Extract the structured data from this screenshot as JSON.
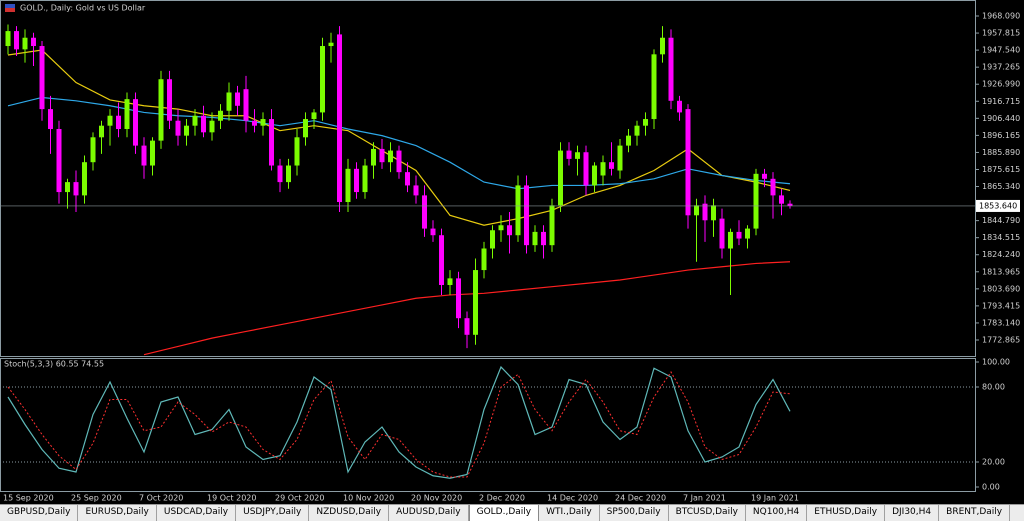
{
  "chart_data": [
    {
      "type": "candlestick",
      "title": "GOLD., Daily:  Gold vs US Dollar",
      "categories": [
        "15 Sep 2020",
        null,
        null,
        null,
        null,
        null,
        null,
        null,
        "25 Sep 2020",
        null,
        null,
        null,
        null,
        null,
        null,
        null,
        "7 Oct 2020",
        null,
        null,
        null,
        null,
        null,
        null,
        null,
        "19 Oct 2020",
        null,
        null,
        null,
        null,
        null,
        null,
        null,
        "29 Oct 2020",
        null,
        null,
        null,
        null,
        null,
        null,
        null,
        "10 Nov 2020",
        null,
        null,
        null,
        null,
        null,
        null,
        null,
        "20 Nov 2020",
        null,
        null,
        null,
        null,
        null,
        null,
        null,
        "2 Dec 2020",
        null,
        null,
        null,
        null,
        null,
        null,
        null,
        "14 Dec 2020",
        null,
        null,
        null,
        null,
        null,
        null,
        null,
        "24 Dec 2020",
        null,
        null,
        null,
        null,
        null,
        null,
        null,
        "7 Jan 2021",
        null,
        null,
        null,
        null,
        null,
        null,
        null,
        "19 Jan 2021",
        null,
        null,
        null,
        null
      ],
      "open": [
        1950,
        1959,
        1948,
        1955,
        1950,
        1912,
        1900,
        1862,
        1868,
        1860,
        1880,
        1895,
        1902,
        1908,
        1900,
        1918,
        1890,
        1878,
        1893,
        1930,
        1905,
        1896,
        1902,
        1908,
        1898,
        1905,
        1911,
        1922,
        1924,
        1905,
        1902,
        1906,
        1878,
        1868,
        1878,
        1895,
        1906,
        1910,
        1950,
        1957,
        1856,
        1876,
        1862,
        1878,
        1888,
        1880,
        1887,
        1874,
        1866,
        1860,
        1840,
        1836,
        1806,
        1810,
        1786,
        1776,
        1815,
        1828,
        1839,
        1842,
        1836,
        1866,
        1830,
        1838,
        1830,
        1854,
        1887,
        1882,
        1886,
        1866,
        1872,
        1880,
        1875,
        1890,
        1896,
        1902,
        1906,
        1945,
        1955,
        1917,
        1912,
        1848,
        1855,
        1845,
        1846,
        1828,
        1838,
        1834,
        1840,
        1873,
        1870,
        1860,
        1855
      ],
      "high": [
        1963,
        1962,
        1960,
        1958,
        1953,
        1920,
        1905,
        1870,
        1875,
        1884,
        1898,
        1905,
        1912,
        1916,
        1922,
        1922,
        1895,
        1895,
        1935,
        1935,
        1912,
        1906,
        1912,
        1914,
        1910,
        1915,
        1928,
        1926,
        1932,
        1912,
        1910,
        1912,
        1882,
        1882,
        1900,
        1910,
        1912,
        1955,
        1958,
        1962,
        1882,
        1880,
        1882,
        1892,
        1894,
        1892,
        1890,
        1880,
        1872,
        1866,
        1845,
        1840,
        1815,
        1814,
        1790,
        1822,
        1832,
        1842,
        1848,
        1850,
        1872,
        1872,
        1842,
        1842,
        1858,
        1892,
        1892,
        1890,
        1890,
        1880,
        1884,
        1892,
        1894,
        1900,
        1905,
        1910,
        1948,
        1962,
        1960,
        1920,
        1915,
        1858,
        1860,
        1858,
        1852,
        1840,
        1845,
        1842,
        1876,
        1876,
        1874,
        1864,
        1857
      ],
      "low": [
        1945,
        1944,
        1940,
        1938,
        1905,
        1885,
        1855,
        1852,
        1850,
        1855,
        1875,
        1885,
        1890,
        1895,
        1895,
        1885,
        1870,
        1872,
        1888,
        1900,
        1890,
        1890,
        1896,
        1895,
        1893,
        1900,
        1905,
        1908,
        1898,
        1898,
        1896,
        1875,
        1862,
        1864,
        1872,
        1890,
        1900,
        1905,
        1940,
        1850,
        1850,
        1858,
        1858,
        1870,
        1876,
        1874,
        1870,
        1862,
        1855,
        1835,
        1832,
        1800,
        1800,
        1780,
        1768,
        1770,
        1810,
        1822,
        1832,
        1825,
        1832,
        1825,
        1826,
        1822,
        1826,
        1850,
        1878,
        1872,
        1860,
        1862,
        1866,
        1872,
        1870,
        1886,
        1890,
        1896,
        1900,
        1940,
        1912,
        1905,
        1840,
        1820,
        1832,
        1835,
        1822,
        1800,
        1830,
        1828,
        1836,
        1865,
        1846,
        1848,
        1852
      ],
      "close": [
        1959,
        1948,
        1955,
        1950,
        1912,
        1900,
        1862,
        1868,
        1860,
        1880,
        1895,
        1902,
        1908,
        1900,
        1918,
        1890,
        1878,
        1893,
        1930,
        1905,
        1896,
        1902,
        1908,
        1898,
        1905,
        1911,
        1922,
        1914,
        1905,
        1902,
        1906,
        1878,
        1868,
        1878,
        1895,
        1906,
        1910,
        1950,
        1952,
        1856,
        1876,
        1862,
        1878,
        1888,
        1880,
        1887,
        1874,
        1866,
        1860,
        1840,
        1836,
        1806,
        1810,
        1786,
        1776,
        1815,
        1828,
        1839,
        1842,
        1836,
        1866,
        1830,
        1838,
        1830,
        1854,
        1887,
        1882,
        1886,
        1866,
        1878,
        1880,
        1876,
        1890,
        1896,
        1902,
        1906,
        1945,
        1955,
        1917,
        1910,
        1848,
        1854,
        1845,
        1854,
        1828,
        1838,
        1834,
        1840,
        1873,
        1870,
        1860,
        1855,
        1853.64
      ],
      "up_color": "#7cfc00",
      "down_color": "#ff00ff",
      "lines": [
        {
          "color": "#e8cc10",
          "x": [
            0,
            4,
            8,
            12,
            16,
            20,
            24,
            28,
            32,
            36,
            40,
            44,
            48,
            52,
            56,
            60,
            64,
            68,
            72,
            76,
            80,
            84,
            88,
            92
          ],
          "values": [
            1944.6,
            1947.6,
            1928,
            1917.5,
            1914,
            1912,
            1908,
            1908,
            1899,
            1902,
            1899,
            1887,
            1875,
            1848,
            1842,
            1846,
            1851,
            1860,
            1866,
            1875,
            1888,
            1872,
            1868,
            1863
          ]
        },
        {
          "color": "#2ea8e8",
          "x": [
            0,
            4,
            8,
            12,
            16,
            20,
            24,
            28,
            32,
            36,
            40,
            44,
            48,
            52,
            56,
            60,
            64,
            68,
            72,
            76,
            80,
            84,
            88,
            92
          ],
          "values": [
            1914,
            1919,
            1917,
            1914,
            1910,
            1908,
            1907,
            1905,
            1902,
            1905,
            1900,
            1896,
            1890,
            1880,
            1868,
            1864,
            1866,
            1866,
            1867,
            1870,
            1876,
            1872,
            1869,
            1867
          ]
        },
        {
          "color": "#ff2020",
          "x": [
            0,
            4,
            8,
            12,
            16,
            20,
            24,
            28,
            32,
            36,
            40,
            44,
            48,
            52,
            56,
            60,
            64,
            68,
            72,
            76,
            80,
            84,
            88,
            92
          ],
          "values": [
            null,
            null,
            null,
            null,
            1764,
            1769,
            1774,
            1778,
            1782,
            1786,
            1790,
            1794,
            1798,
            1800,
            1801,
            1803,
            1805,
            1807,
            1809,
            1812,
            1815,
            1817,
            1819,
            1820
          ]
        }
      ],
      "price_line": {
        "value": 1853.64,
        "label": "1853.640"
      },
      "ylim": [
        1763.22,
        1976.53
      ],
      "yticks": [
        {
          "value": 1968.09,
          "label": "1968.090"
        },
        {
          "value": 1957.815,
          "label": "1957.815"
        },
        {
          "value": 1947.54,
          "label": "1947.540"
        },
        {
          "value": 1937.265,
          "label": "1937.265"
        },
        {
          "value": 1926.99,
          "label": "1926.990"
        },
        {
          "value": 1916.715,
          "label": "1916.715"
        },
        {
          "value": 1906.44,
          "label": "1906.440"
        },
        {
          "value": 1896.165,
          "label": "1896.165"
        },
        {
          "value": 1885.89,
          "label": "1885.890"
        },
        {
          "value": 1875.615,
          "label": "1875.615"
        },
        {
          "value": 1865.34,
          "label": "1865.340"
        },
        {
          "value": 1844.79,
          "label": "1844.790"
        },
        {
          "value": 1834.515,
          "label": "1834.515"
        },
        {
          "value": 1824.24,
          "label": "1824.240"
        },
        {
          "value": 1813.965,
          "label": "1813.965"
        },
        {
          "value": 1803.69,
          "label": "1803.690"
        },
        {
          "value": 1793.415,
          "label": "1793.415"
        },
        {
          "value": 1783.14,
          "label": "1783.140"
        },
        {
          "value": 1772.865,
          "label": "1772.865"
        }
      ]
    },
    {
      "type": "line",
      "title": "Stoch(5,3,3) 60.55 74.55",
      "x": [
        0,
        2,
        4,
        6,
        8,
        10,
        12,
        14,
        16,
        18,
        20,
        22,
        24,
        26,
        28,
        30,
        32,
        34,
        36,
        38,
        40,
        42,
        44,
        46,
        48,
        50,
        52,
        54,
        56,
        58,
        60,
        62,
        64,
        66,
        68,
        70,
        72,
        74,
        76,
        78,
        80,
        82,
        84,
        86,
        88,
        90,
        92
      ],
      "series": [
        {
          "color": "#5fb8b8",
          "values": [
            72,
            50,
            30,
            15,
            12,
            58,
            84,
            55,
            28,
            68,
            72,
            42,
            46,
            62,
            32,
            22,
            25,
            52,
            88,
            78,
            12,
            36,
            48,
            28,
            16,
            9,
            7,
            10,
            62,
            96,
            82,
            42,
            48,
            86,
            82,
            52,
            38,
            48,
            95,
            88,
            45,
            20,
            24,
            32,
            66,
            86,
            60.55
          ]
        },
        {
          "color": "#ff3030",
          "dashed": true,
          "values": [
            80,
            62,
            42,
            25,
            14,
            35,
            70,
            70,
            45,
            48,
            68,
            58,
            44,
            52,
            48,
            30,
            22,
            38,
            70,
            85,
            40,
            22,
            42,
            38,
            22,
            12,
            8,
            8,
            35,
            80,
            90,
            62,
            45,
            68,
            86,
            68,
            45,
            42,
            72,
            92,
            68,
            32,
            22,
            26,
            48,
            76,
            74.55
          ]
        }
      ],
      "levels": [
        80,
        20
      ],
      "ylim": [
        -4,
        103.2
      ],
      "yticks": [
        {
          "value": 100,
          "label": "100.00"
        },
        {
          "value": 80,
          "label": "80.00"
        },
        {
          "value": 20,
          "label": "20.00"
        },
        {
          "value": 0,
          "label": "0.00"
        }
      ]
    }
  ],
  "tabs": {
    "items": [
      "GBPUSD,Daily",
      "EURUSD,Daily",
      "USDCAD,Daily",
      "USDJPY,Daily",
      "NZDUSD,Daily",
      "AUDUSD,Daily",
      "GOLD.,Daily",
      "WTI.,Daily",
      "SP500,Daily",
      "BTCUSD,Daily",
      "NQ100,H4",
      "ETHUSD,Daily",
      "DJI30,H4",
      "BRENT,Daily"
    ],
    "active": 6
  }
}
